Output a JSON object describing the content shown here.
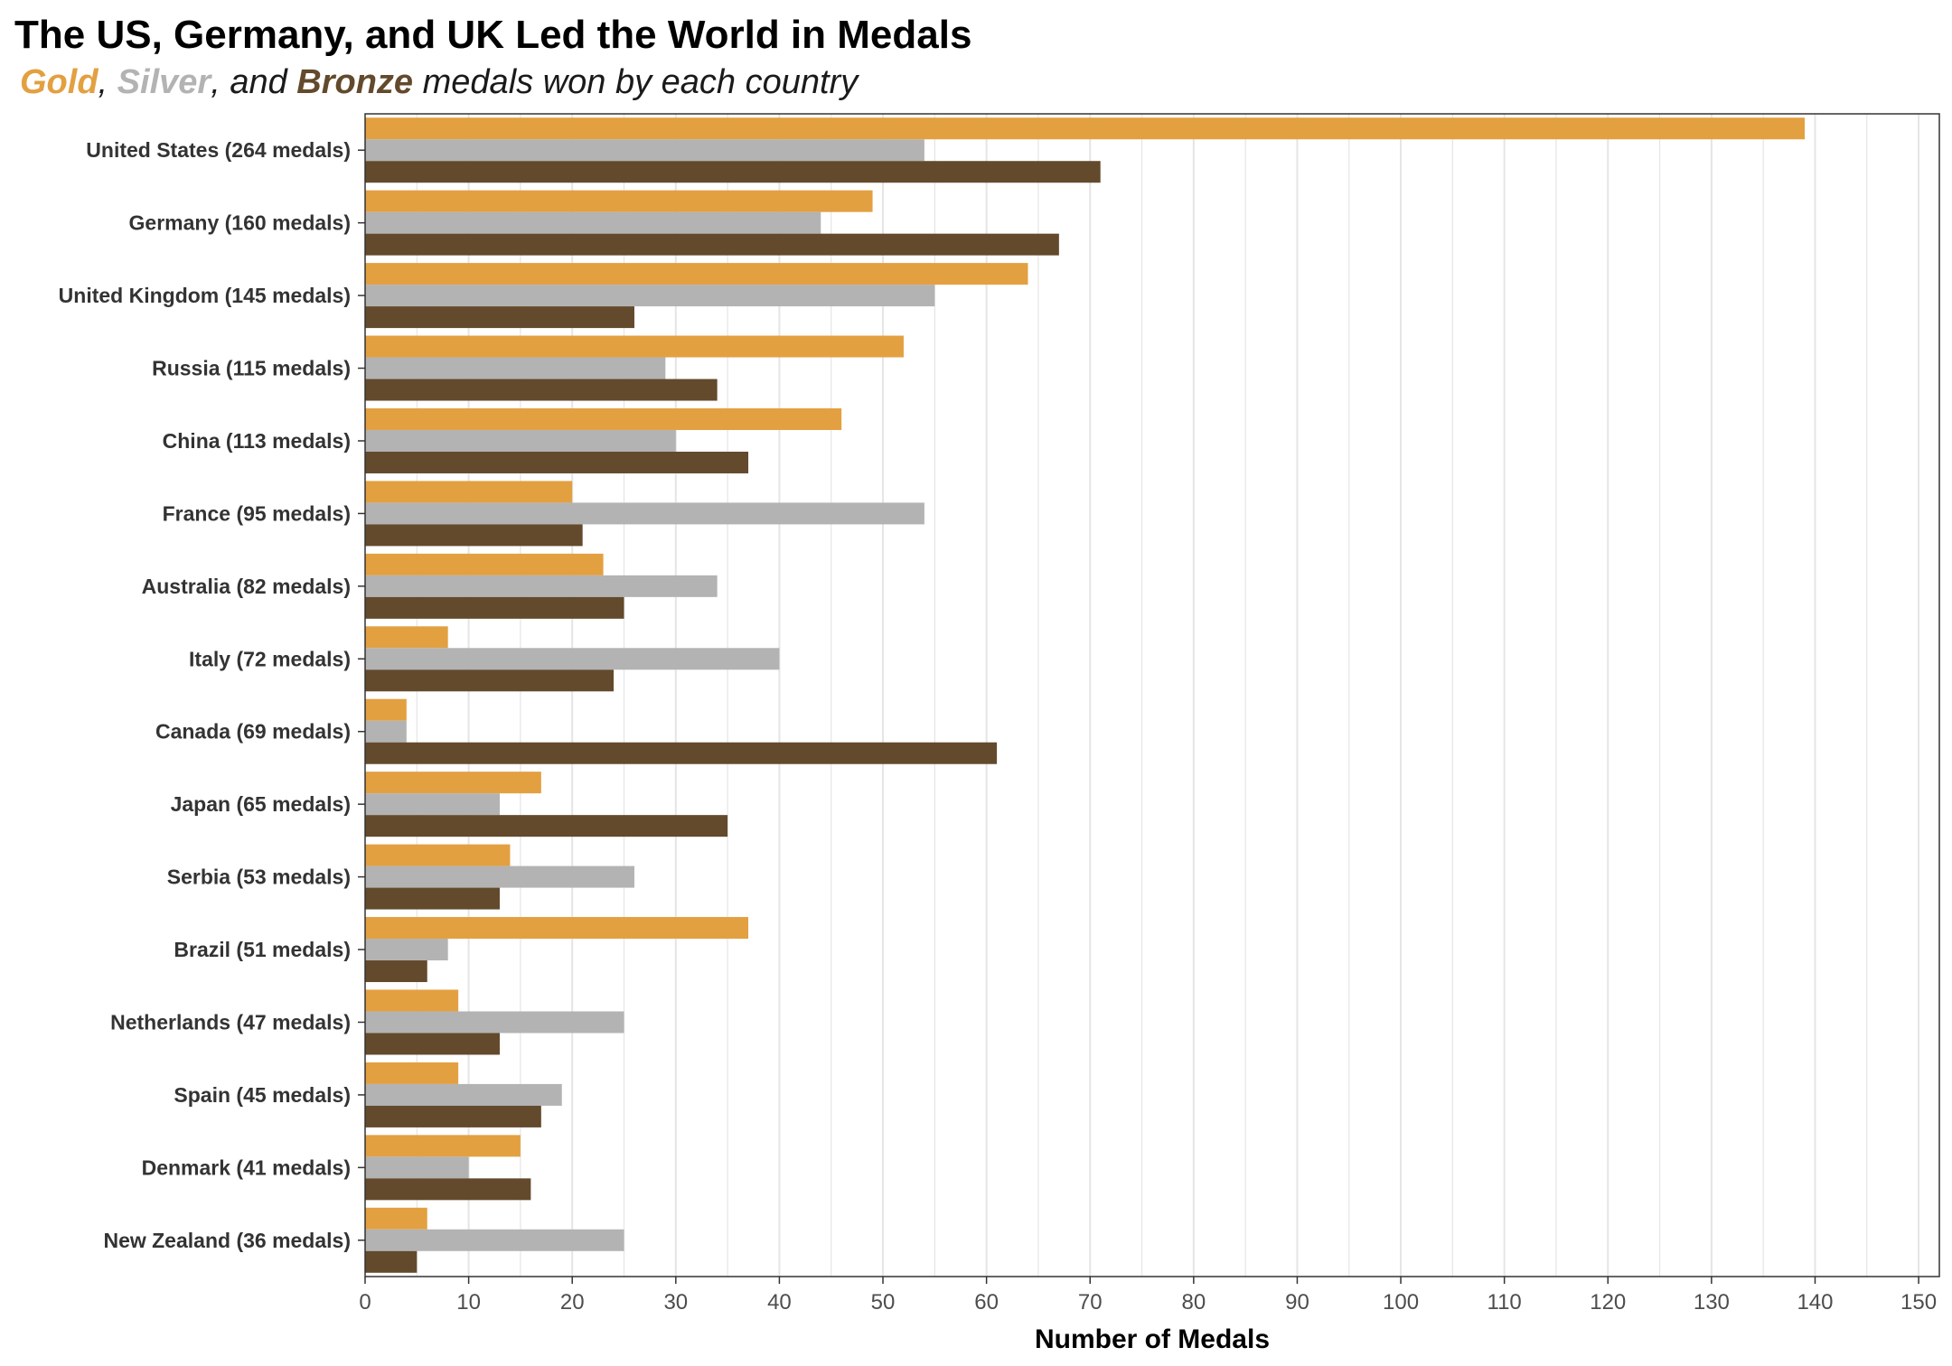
{
  "title": "The US, Germany, and UK Led the World in Medals",
  "subtitle": {
    "gold_word": "Gold",
    "sep1": ", ",
    "silver_word": "Silver",
    "sep2": ", and ",
    "bronze_word": "Bronze",
    "rest": " medals won by each country"
  },
  "colors": {
    "gold": "#E3A041",
    "silver": "#B3B3B3",
    "bronze": "#634A2C",
    "grid": "#E5E5E5",
    "axis": "#333333",
    "tick_text": "#4D4D4D",
    "country_text": "#333333"
  },
  "chart_data": {
    "type": "bar",
    "orientation": "horizontal",
    "title": "The US, Germany, and UK Led the World in Medals",
    "xlabel": "Number of Medals",
    "ylabel": "",
    "xlim": [
      0,
      152
    ],
    "x_ticks": [
      0,
      10,
      20,
      30,
      40,
      50,
      60,
      70,
      80,
      90,
      100,
      110,
      120,
      130,
      140,
      150
    ],
    "vertical_grid": true,
    "legend": "subtitle",
    "categories": [
      "United States (264 medals)",
      "Germany (160 medals)",
      "United Kingdom (145 medals)",
      "Russia (115 medals)",
      "China (113 medals)",
      "France (95 medals)",
      "Australia (82 medals)",
      "Italy (72 medals)",
      "Canada (69 medals)",
      "Japan (65 medals)",
      "Serbia (53 medals)",
      "Brazil (51 medals)",
      "Netherlands (47 medals)",
      "Spain (45 medals)",
      "Denmark (41 medals)",
      "New Zealand (36 medals)"
    ],
    "series": [
      {
        "name": "Gold",
        "color": "#E3A041",
        "values": [
          139,
          49,
          64,
          52,
          46,
          20,
          23,
          8,
          4,
          17,
          14,
          37,
          9,
          9,
          15,
          6
        ]
      },
      {
        "name": "Silver",
        "color": "#B3B3B3",
        "values": [
          54,
          44,
          55,
          29,
          30,
          54,
          34,
          40,
          4,
          13,
          26,
          8,
          25,
          19,
          10,
          25
        ]
      },
      {
        "name": "Bronze",
        "color": "#634A2C",
        "values": [
          71,
          67,
          26,
          34,
          37,
          21,
          25,
          24,
          61,
          35,
          13,
          6,
          13,
          17,
          16,
          5
        ]
      }
    ]
  }
}
